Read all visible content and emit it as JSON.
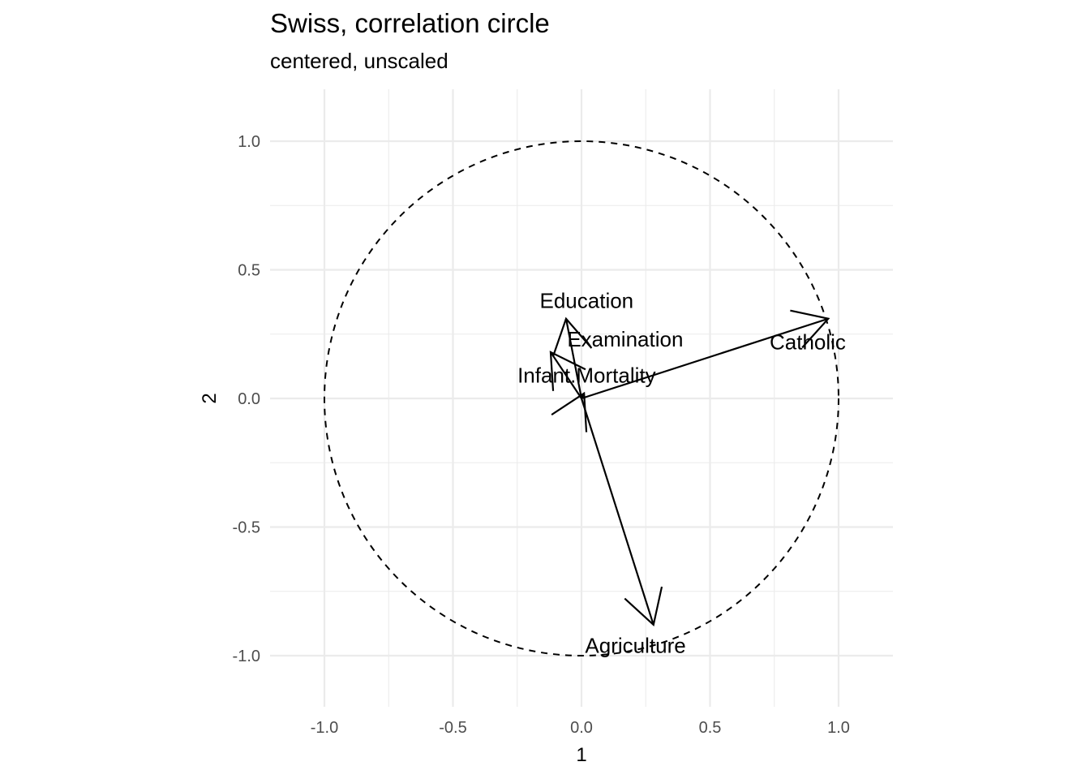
{
  "title": "Swiss, correlation circle",
  "subtitle": "centered, unscaled",
  "chart_data": {
    "type": "scatter",
    "subtype": "correlation-circle",
    "title": "Swiss, correlation circle",
    "subtitle": "centered, unscaled",
    "xlabel": "1",
    "ylabel": "2",
    "xlim": [
      -1.2,
      1.2
    ],
    "ylim": [
      -1.2,
      1.2
    ],
    "x_ticks": [
      -1.0,
      -0.5,
      0.0,
      0.5,
      1.0
    ],
    "y_ticks": [
      -1.0,
      -0.5,
      0.0,
      0.5,
      1.0
    ],
    "x_tick_labels": [
      "-1.0",
      "-0.5",
      "0.0",
      "0.5",
      "1.0"
    ],
    "y_tick_labels": [
      "-1.0",
      "-0.5",
      "0.0",
      "0.5",
      "1.0"
    ],
    "grid": true,
    "unit_circle": "dashed",
    "vectors": [
      {
        "name": "Catholic",
        "x": 0.96,
        "y": 0.31
      },
      {
        "name": "Agriculture",
        "x": 0.28,
        "y": -0.88
      },
      {
        "name": "Education",
        "x": -0.06,
        "y": 0.31
      },
      {
        "name": "Examination",
        "x": -0.12,
        "y": 0.18
      },
      {
        "name": "Infant.Mortality",
        "x": 0.01,
        "y": 0.02
      }
    ],
    "labels": [
      {
        "text": "Catholic",
        "x": 0.88,
        "y": 0.22
      },
      {
        "text": "Agriculture",
        "x": 0.21,
        "y": -0.96
      },
      {
        "text": "Education",
        "x": 0.02,
        "y": 0.38
      },
      {
        "text": "Examination",
        "x": 0.17,
        "y": 0.23
      },
      {
        "text": "Infant.Mortality",
        "x": 0.02,
        "y": 0.09
      }
    ],
    "colors": {
      "line": "#000000",
      "grid": "#ebebeb",
      "tick_text": "#4d4d4d"
    }
  }
}
